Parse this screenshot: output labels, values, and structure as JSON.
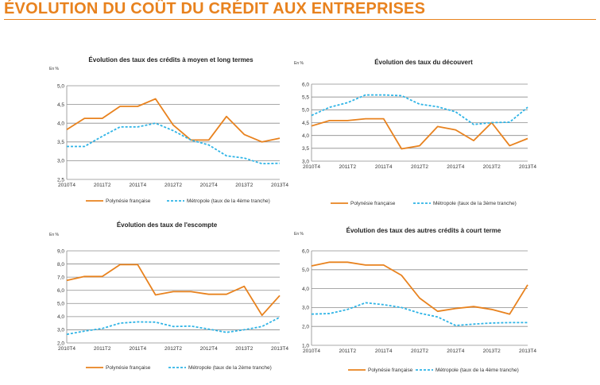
{
  "page": {
    "title": "ÉVOLUTION DU COÛT DU CRÉDIT AUX ENTREPRISES"
  },
  "colors": {
    "orange": "#e8821e",
    "blue": "#2fb4e6",
    "title": "#e8821e"
  },
  "chart_data": [
    {
      "type": "line",
      "title": "Évolution des taux des crédits à moyen et long termes",
      "unit": "En %",
      "ylim": [
        2.5,
        5.0
      ],
      "yticks": [
        2.5,
        3.0,
        3.5,
        4.0,
        4.5,
        5.0
      ],
      "grid": true,
      "legend": "bottom",
      "x": [
        "2010T4",
        "2011T1",
        "2011T2",
        "2011T3",
        "2011T4",
        "2012T1",
        "2012T2",
        "2012T3",
        "2012T4",
        "2013T1",
        "2013T2",
        "2013T3",
        "2013T4"
      ],
      "xtick_labels": [
        "2010T4",
        "2011T2",
        "2011T4",
        "2012T2",
        "2012T4",
        "2013T2",
        "2013T4"
      ],
      "series": [
        {
          "name": "Polynésie française",
          "style": "solid",
          "values": [
            3.83,
            4.13,
            4.13,
            4.45,
            4.45,
            4.65,
            3.95,
            3.55,
            3.55,
            4.18,
            3.7,
            3.5,
            3.6
          ]
        },
        {
          "name": "Métropole (taux de la 4ème tranche)",
          "style": "dashed",
          "values": [
            3.38,
            3.38,
            3.65,
            3.9,
            3.9,
            4.0,
            3.8,
            3.55,
            3.42,
            3.13,
            3.07,
            2.92,
            2.93
          ]
        }
      ]
    },
    {
      "type": "line",
      "title": "Évolution des taux du découvert",
      "unit": "En %",
      "ylim": [
        3.0,
        6.0
      ],
      "yticks": [
        3.0,
        3.5,
        4.0,
        4.5,
        5.0,
        5.5,
        6.0
      ],
      "grid": true,
      "legend": "bottom",
      "x": [
        "2010T4",
        "2011T1",
        "2011T2",
        "2011T3",
        "2011T4",
        "2012T1",
        "2012T2",
        "2012T3",
        "2012T4",
        "2013T1",
        "2013T2",
        "2013T3",
        "2013T4"
      ],
      "xtick_labels": [
        "2010T4",
        "2011T2",
        "2011T4",
        "2012T2",
        "2012T4",
        "2013T2",
        "2013T4"
      ],
      "series": [
        {
          "name": "Polynésie française",
          "style": "solid",
          "values": [
            4.37,
            4.58,
            4.58,
            4.65,
            4.65,
            3.48,
            3.6,
            4.35,
            4.22,
            3.8,
            4.5,
            3.6,
            3.88
          ]
        },
        {
          "name": "Métropole (taux de la 3ème tranche)",
          "style": "dashed",
          "values": [
            4.78,
            5.1,
            5.28,
            5.58,
            5.58,
            5.55,
            5.22,
            5.12,
            4.92,
            4.43,
            4.5,
            4.52,
            5.1
          ]
        }
      ]
    },
    {
      "type": "line",
      "title": "Évolution des taux de l'escompte",
      "unit": "En %",
      "ylim": [
        2.0,
        9.0
      ],
      "yticks": [
        2.0,
        3.0,
        4.0,
        5.0,
        6.0,
        7.0,
        8.0,
        9.0
      ],
      "grid": true,
      "legend": "bottom",
      "x": [
        "2010T4",
        "2011T1",
        "2011T2",
        "2011T3",
        "2011T4",
        "2012T1",
        "2012T2",
        "2012T3",
        "2012T4",
        "2013T1",
        "2013T2",
        "2013T3",
        "2013T4"
      ],
      "xtick_labels": [
        "2010T4",
        "2011T2",
        "2011T4",
        "2012T2",
        "2012T4",
        "2013T2",
        "2013T4"
      ],
      "series": [
        {
          "name": "Polynésie française",
          "style": "solid",
          "values": [
            6.75,
            7.05,
            7.05,
            7.95,
            7.95,
            5.65,
            5.9,
            5.9,
            5.7,
            5.7,
            6.3,
            4.1,
            5.6
          ]
        },
        {
          "name": "Métropole (taux de la 2ème tranche)",
          "style": "dashed",
          "values": [
            2.65,
            2.9,
            3.1,
            3.5,
            3.6,
            3.58,
            3.25,
            3.28,
            3.05,
            2.8,
            3.0,
            3.25,
            3.95
          ]
        }
      ]
    },
    {
      "type": "line",
      "title": "Évolution des taux des autres crédits à court terme",
      "unit": "En %",
      "ylim": [
        1.0,
        6.0
      ],
      "yticks": [
        1.0,
        2.0,
        3.0,
        4.0,
        5.0,
        6.0
      ],
      "grid": true,
      "legend": "bottom",
      "x": [
        "2010T4",
        "2011T1",
        "2011T2",
        "2011T3",
        "2011T4",
        "2012T1",
        "2012T2",
        "2012T3",
        "2012T4",
        "2013T1",
        "2013T2",
        "2013T3",
        "2013T4"
      ],
      "xtick_labels": [
        "2010T4",
        "2011T2",
        "2011T4",
        "2012T2",
        "2012T4",
        "2013T2",
        "2013T4"
      ],
      "series": [
        {
          "name": "Polynésie française",
          "style": "solid",
          "values": [
            5.2,
            5.4,
            5.4,
            5.25,
            5.25,
            4.7,
            3.5,
            2.8,
            2.95,
            3.05,
            2.9,
            2.65,
            4.2
          ]
        },
        {
          "name": "Métropole (taux de la 4ème tranche)",
          "style": "dashed",
          "values": [
            2.65,
            2.68,
            2.9,
            3.25,
            3.15,
            3.0,
            2.7,
            2.5,
            2.05,
            2.12,
            2.18,
            2.2,
            2.2
          ]
        }
      ]
    }
  ]
}
